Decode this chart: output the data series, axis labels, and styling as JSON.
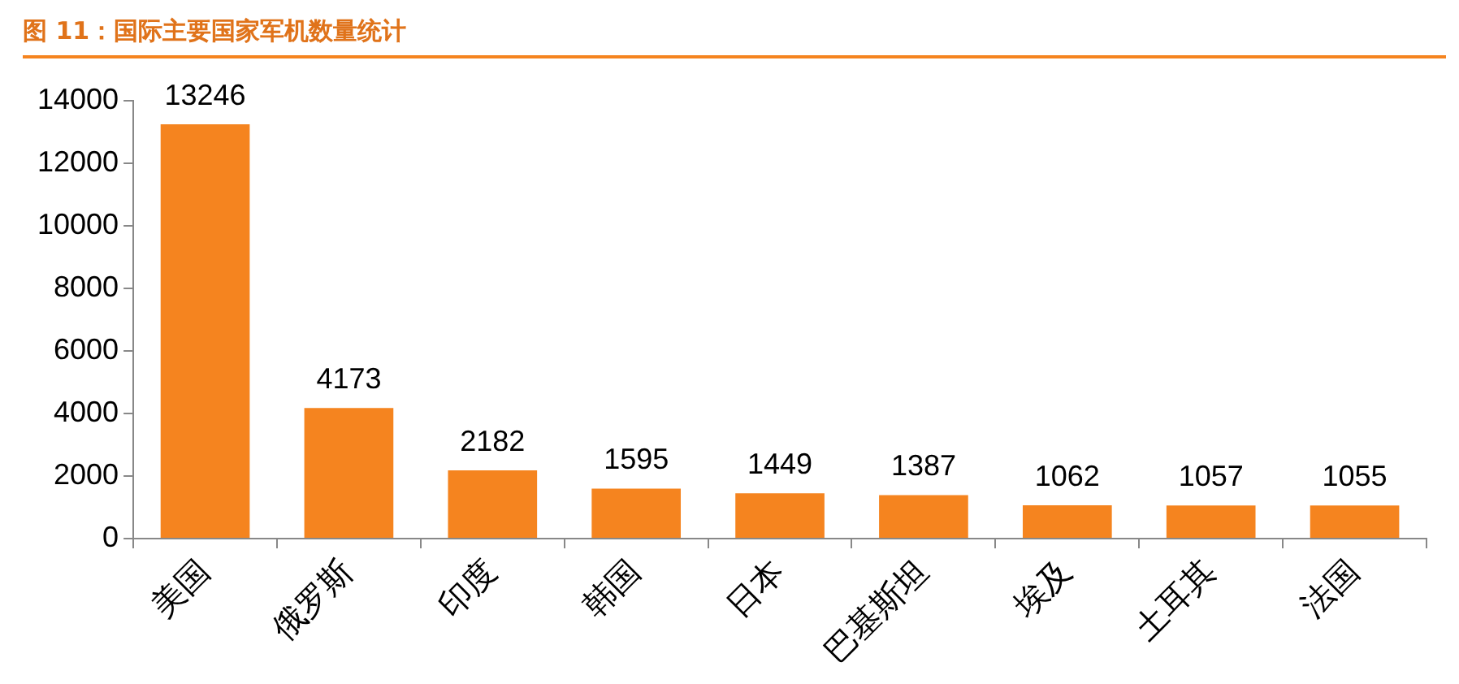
{
  "chart_data": {
    "type": "bar",
    "title": "图 11：国际主要国家军机数量统计",
    "categories": [
      "美国",
      "俄罗斯",
      "印度",
      "韩国",
      "日本",
      "巴基斯坦",
      "埃及",
      "土耳其",
      "法国"
    ],
    "values": [
      13246,
      4173,
      2182,
      1595,
      1449,
      1387,
      1062,
      1057,
      1055
    ],
    "color": "#f5841f",
    "ylim": [
      0,
      14000
    ],
    "yticks": [
      0,
      2000,
      4000,
      6000,
      8000,
      10000,
      12000,
      14000
    ],
    "data_labels": true,
    "grid": false,
    "legend": false
  }
}
